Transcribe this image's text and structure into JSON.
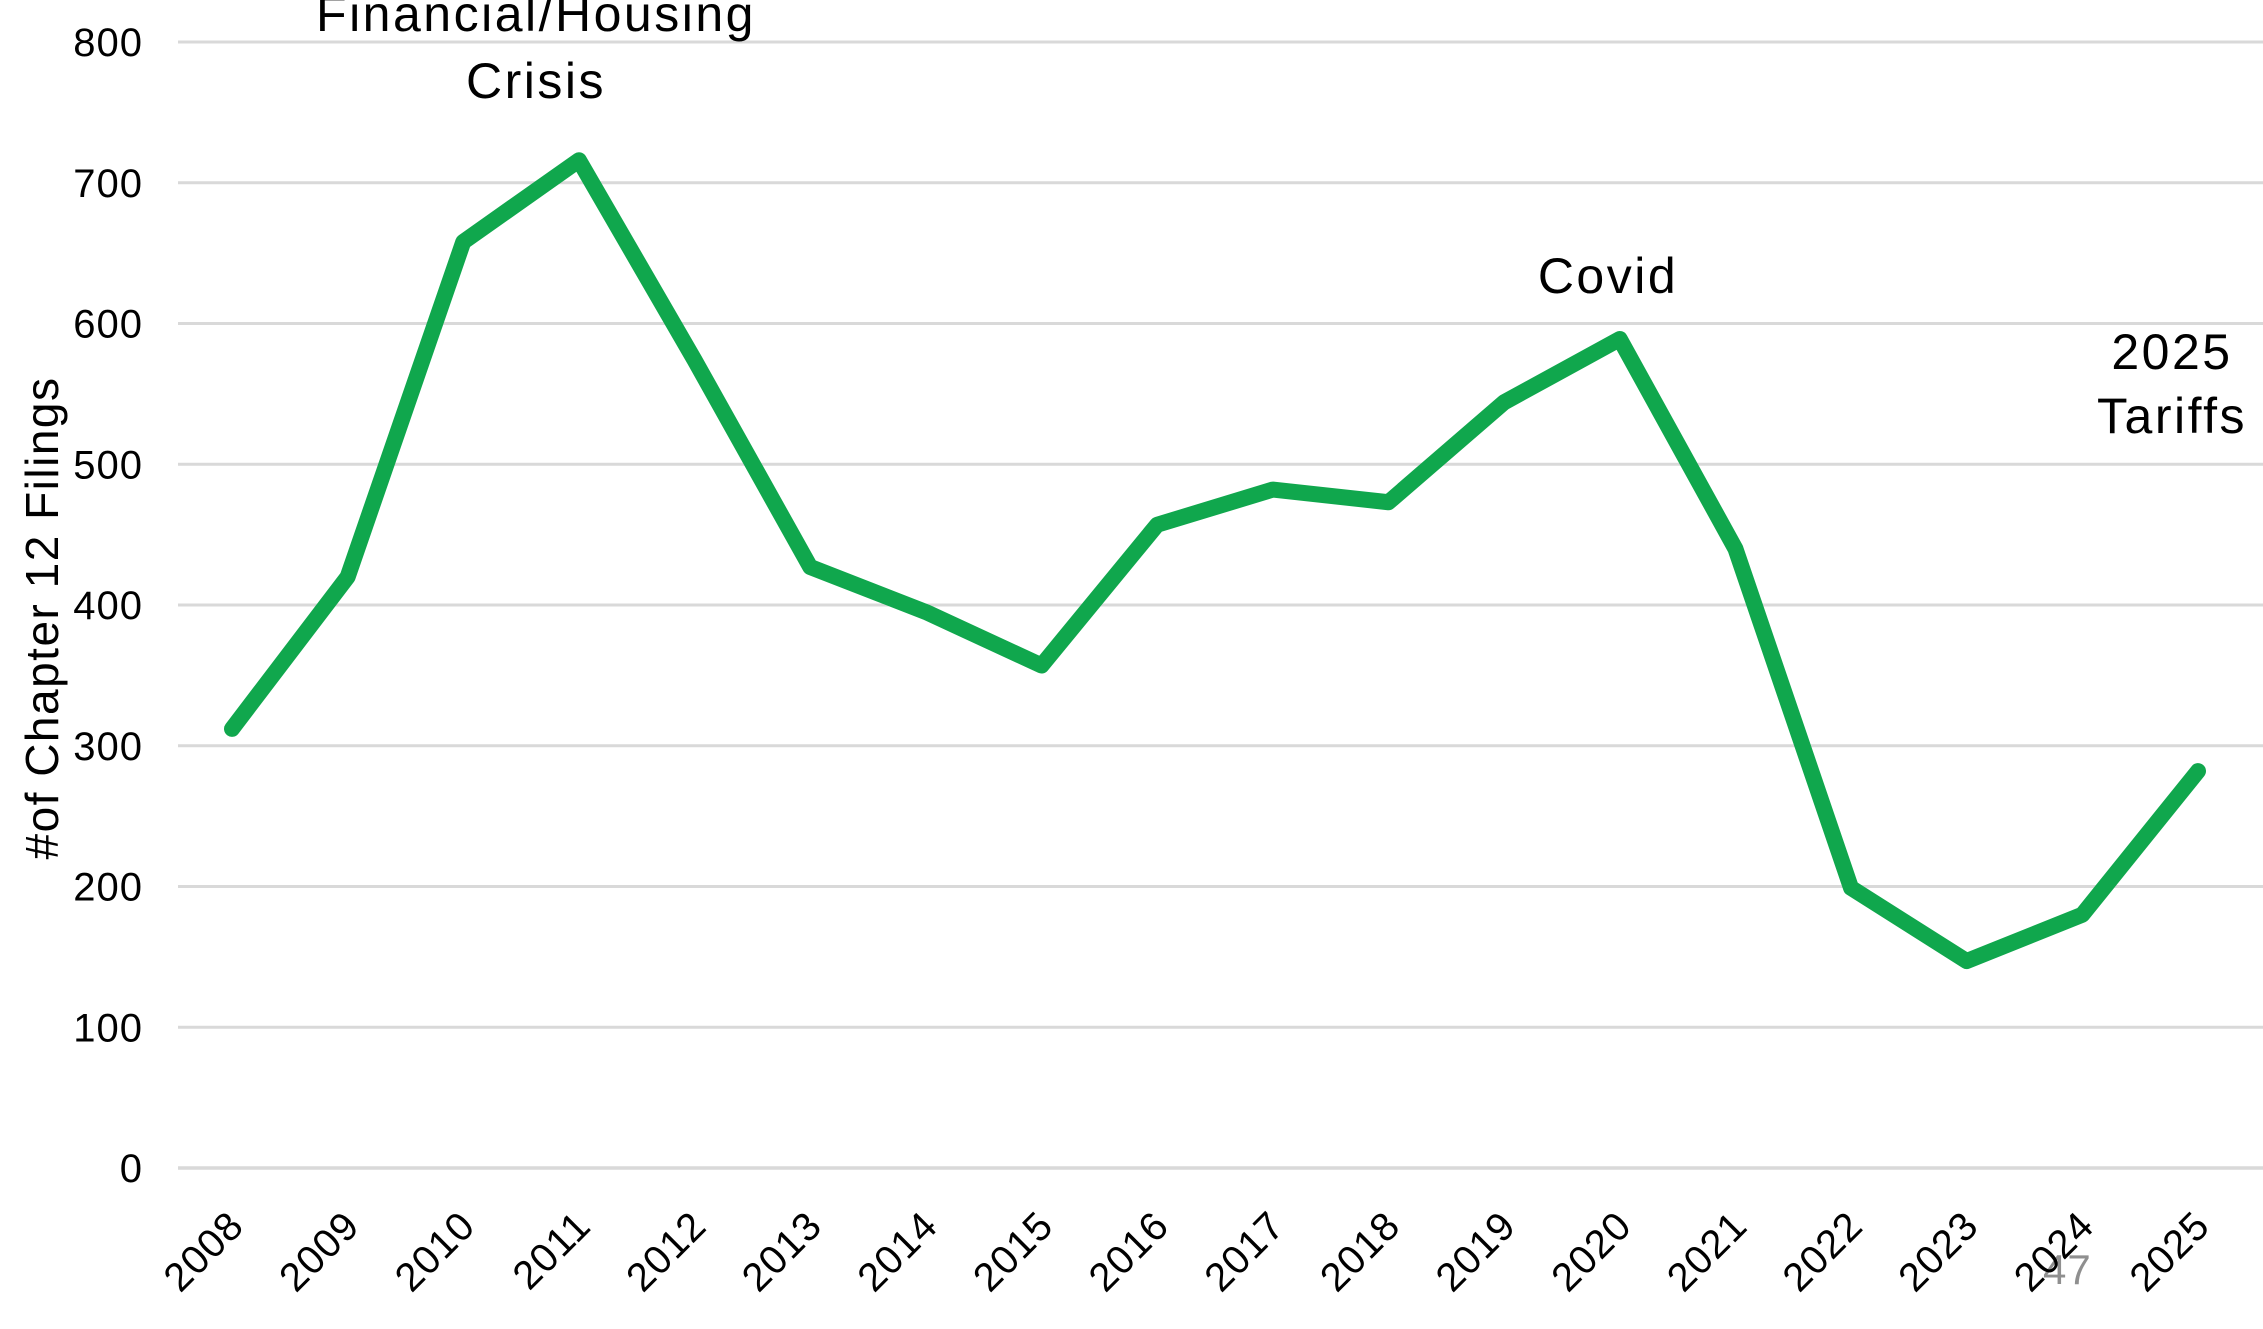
{
  "page": {
    "number": "47",
    "background_color": "#ffffff",
    "page_number_color": "#8f8f8f"
  },
  "chart_data": {
    "type": "line",
    "title": "",
    "xlabel": "",
    "ylabel": "#of Chapter 12 Filings",
    "categories": [
      "2008",
      "2009",
      "2010",
      "2011",
      "2012",
      "2013",
      "2014",
      "2015",
      "2016",
      "2017",
      "2018",
      "2019",
      "2020",
      "2021",
      "2022",
      "2023",
      "2024",
      "2025"
    ],
    "series": [
      {
        "name": "Chapter 12 Filings",
        "values": [
          312,
          420,
          658,
          716,
          574,
          427,
          395,
          357,
          457,
          482,
          473,
          544,
          589,
          440,
          199,
          147,
          180,
          282
        ]
      }
    ],
    "ylim": [
      0,
      800
    ],
    "y_ticks": [
      0,
      100,
      200,
      300,
      400,
      500,
      600,
      700,
      800
    ],
    "grid": "horizontal-only",
    "legend": "none",
    "line_color": "#10a74d",
    "gridline_color": "#d9d9d9",
    "tick_label_color": "#000000",
    "x_tick_rotation_deg": -45,
    "annotations": [
      {
        "id": "financial-housing-crisis",
        "text": "Financial/Housing\nCrisis",
        "near_year": "2011"
      },
      {
        "id": "covid",
        "text": "Covid",
        "near_year": "2020"
      },
      {
        "id": "tariffs-2025",
        "text": "2025\nTariffs",
        "near_year": "2025"
      }
    ]
  }
}
